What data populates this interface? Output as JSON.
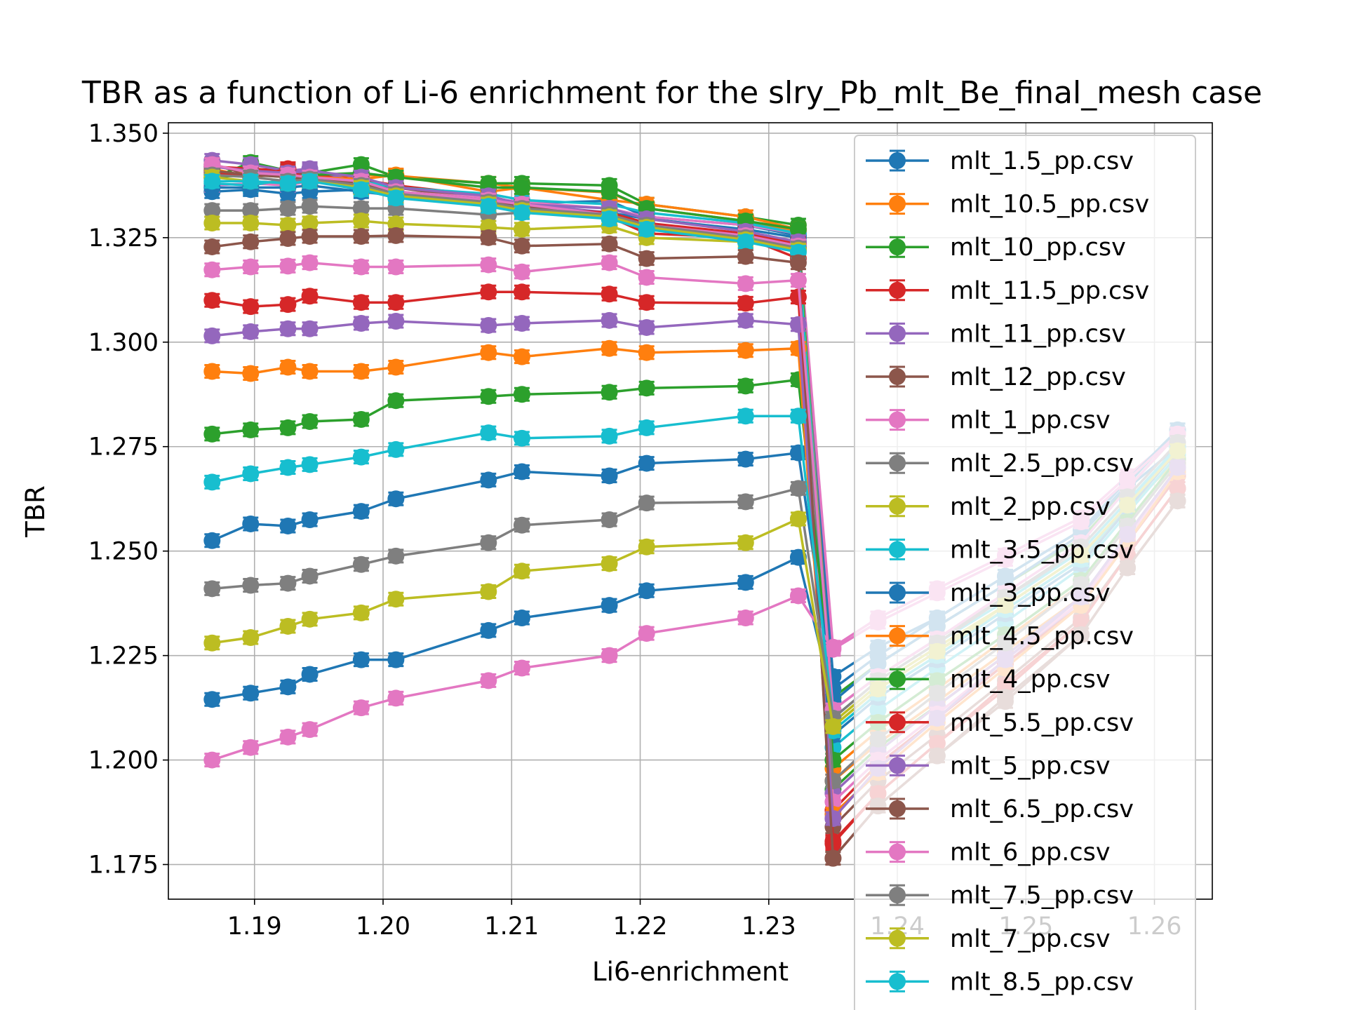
{
  "chart_data": {
    "type": "line",
    "title": "TBR as a function of Li-6 enrichment for the slry_Pb_mlt_Be_final_mesh case",
    "xlabel": "Li6-enrichment",
    "ylabel": "TBR",
    "xlim": [
      1.1833,
      1.2645
    ],
    "ylim": [
      1.1667,
      1.3525
    ],
    "xticks": [
      1.19,
      1.2,
      1.21,
      1.22,
      1.23,
      1.24,
      1.25,
      1.26
    ],
    "xtick_labels": [
      "1.19",
      "1.20",
      "1.21",
      "1.22",
      "1.23",
      "1.24",
      "1.25",
      "1.26"
    ],
    "yticks": [
      1.175,
      1.2,
      1.225,
      1.25,
      1.275,
      1.3,
      1.325,
      1.35
    ],
    "ytick_labels": [
      "1.175",
      "1.200",
      "1.225",
      "1.250",
      "1.275",
      "1.300",
      "1.325",
      "1.350"
    ],
    "grid": true,
    "legend_position": "upper-right",
    "x": [
      1.1867,
      1.1897,
      1.1926,
      1.1943,
      1.1983,
      1.201,
      1.2082,
      1.2108,
      1.2176,
      1.2205,
      1.2282,
      1.2323,
      1.235,
      1.2385,
      1.2431,
      1.2484,
      1.2543,
      1.2579,
      1.2618
    ],
    "series": [
      {
        "name": "mlt_1.5_pp.csv",
        "color": "#1f77b4",
        "values": [
          1.336,
          1.3365,
          1.3355,
          1.336,
          1.3365,
          1.3345,
          1.333,
          1.3332,
          1.3338,
          1.33,
          1.328,
          1.3255,
          1.22,
          1.227,
          1.234,
          1.244,
          1.255,
          1.265,
          1.275
        ]
      },
      {
        "name": "mlt_10.5_pp.csv",
        "color": "#ff7f0e",
        "values": [
          1.3415,
          1.3395,
          1.3405,
          1.3395,
          1.34,
          1.3398,
          1.338,
          1.337,
          1.3358,
          1.332,
          1.329,
          1.3265,
          1.195,
          1.204,
          1.214,
          1.226,
          1.239,
          1.253,
          1.268
        ]
      },
      {
        "name": "mlt_10_pp.csv",
        "color": "#2ca02c",
        "values": [
          1.3392,
          1.343,
          1.341,
          1.3405,
          1.3425,
          1.3395,
          1.338,
          1.338,
          1.3375,
          1.333,
          1.33,
          1.328,
          1.193,
          1.203,
          1.213,
          1.225,
          1.239,
          1.254,
          1.27
        ]
      },
      {
        "name": "mlt_11.5_pp.csv",
        "color": "#d62728",
        "values": [
          1.342,
          1.3415,
          1.341,
          1.34,
          1.339,
          1.3375,
          1.335,
          1.333,
          1.33,
          1.326,
          1.325,
          1.32,
          1.18,
          1.192,
          1.204,
          1.217,
          1.233,
          1.249,
          1.265
        ]
      },
      {
        "name": "mlt_11_pp.csv",
        "color": "#9467bd",
        "values": [
          1.3435,
          1.3425,
          1.341,
          1.3415,
          1.338,
          1.337,
          1.3345,
          1.333,
          1.331,
          1.328,
          1.325,
          1.3225,
          1.186,
          1.198,
          1.21,
          1.223,
          1.238,
          1.254,
          1.27
        ]
      },
      {
        "name": "mlt_12_pp.csv",
        "color": "#8c564b",
        "values": [
          1.3425,
          1.34,
          1.341,
          1.3395,
          1.338,
          1.337,
          1.334,
          1.332,
          1.3305,
          1.328,
          1.3255,
          1.323,
          1.1765,
          1.189,
          1.201,
          1.214,
          1.23,
          1.246,
          1.262
        ]
      },
      {
        "name": "mlt_1_pp.csv",
        "color": "#e377c2",
        "values": [
          1.3375,
          1.338,
          1.3375,
          1.3385,
          1.337,
          1.336,
          1.3345,
          1.3335,
          1.332,
          1.33,
          1.328,
          1.326,
          1.227,
          1.234,
          1.241,
          1.249,
          1.258,
          1.268,
          1.278
        ]
      },
      {
        "name": "mlt_2.5_pp.csv",
        "color": "#7f7f7f",
        "values": [
          1.3315,
          1.3315,
          1.332,
          1.3325,
          1.332,
          1.332,
          1.3305,
          1.331,
          1.33,
          1.328,
          1.326,
          1.324,
          1.212,
          1.22,
          1.229,
          1.239,
          1.25,
          1.262,
          1.274
        ]
      },
      {
        "name": "mlt_2_pp.csv",
        "color": "#bcbd22",
        "values": [
          1.3285,
          1.3285,
          1.328,
          1.3285,
          1.329,
          1.3283,
          1.3275,
          1.327,
          1.3278,
          1.325,
          1.324,
          1.322,
          1.208,
          1.217,
          1.226,
          1.236,
          1.248,
          1.26,
          1.272
        ]
      },
      {
        "name": "mlt_3.5_pp.csv",
        "color": "#17becf",
        "values": [
          1.338,
          1.3375,
          1.339,
          1.3395,
          1.3385,
          1.337,
          1.3355,
          1.334,
          1.333,
          1.331,
          1.3285,
          1.326,
          1.203,
          1.212,
          1.222,
          1.233,
          1.246,
          1.259,
          1.273
        ]
      },
      {
        "name": "mlt_3_pp.csv",
        "color": "#1f77b4",
        "values": [
          1.337,
          1.337,
          1.337,
          1.3375,
          1.336,
          1.335,
          1.333,
          1.332,
          1.331,
          1.3295,
          1.327,
          1.325,
          1.206,
          1.215,
          1.224,
          1.235,
          1.247,
          1.26,
          1.274
        ]
      },
      {
        "name": "mlt_4.5_pp.csv",
        "color": "#ff7f0e",
        "values": [
          1.34,
          1.3405,
          1.34,
          1.3395,
          1.339,
          1.34,
          1.336,
          1.337,
          1.334,
          1.333,
          1.33,
          1.327,
          1.198,
          1.207,
          1.217,
          1.229,
          1.242,
          1.256,
          1.271
        ]
      },
      {
        "name": "mlt_4_pp.csv",
        "color": "#2ca02c",
        "values": [
          1.3395,
          1.34,
          1.3395,
          1.34,
          1.3405,
          1.3395,
          1.337,
          1.337,
          1.336,
          1.332,
          1.329,
          1.327,
          1.2,
          1.209,
          1.219,
          1.23,
          1.243,
          1.257,
          1.272
        ]
      },
      {
        "name": "mlt_5.5_pp.csv",
        "color": "#d62728",
        "values": [
          1.3405,
          1.3395,
          1.3415,
          1.3385,
          1.3375,
          1.335,
          1.3335,
          1.332,
          1.331,
          1.3285,
          1.326,
          1.3235,
          1.188,
          1.199,
          1.21,
          1.223,
          1.237,
          1.252,
          1.268
        ]
      },
      {
        "name": "mlt_5_pp.csv",
        "color": "#9467bd",
        "values": [
          1.342,
          1.341,
          1.3405,
          1.341,
          1.3395,
          1.337,
          1.335,
          1.333,
          1.332,
          1.3295,
          1.3265,
          1.324,
          1.192,
          1.202,
          1.213,
          1.225,
          1.239,
          1.254,
          1.27
        ]
      },
      {
        "name": "mlt_6.5_pp.csv",
        "color": "#8c564b",
        "values": [
          1.341,
          1.34,
          1.3395,
          1.339,
          1.338,
          1.336,
          1.334,
          1.3325,
          1.3305,
          1.328,
          1.3255,
          1.323,
          1.184,
          1.195,
          1.206,
          1.219,
          1.234,
          1.249,
          1.265
        ]
      },
      {
        "name": "mlt_6_pp.csv",
        "color": "#e377c2",
        "values": [
          1.3425,
          1.3405,
          1.34,
          1.3395,
          1.3385,
          1.336,
          1.334,
          1.333,
          1.3305,
          1.328,
          1.3255,
          1.323,
          1.19,
          1.2,
          1.211,
          1.224,
          1.238,
          1.253,
          1.269
        ]
      },
      {
        "name": "mlt_7.5_pp.csv",
        "color": "#7f7f7f",
        "values": [
          1.34,
          1.3395,
          1.3385,
          1.339,
          1.3375,
          1.3355,
          1.3335,
          1.332,
          1.3305,
          1.328,
          1.325,
          1.3225,
          1.195,
          1.205,
          1.216,
          1.228,
          1.242,
          1.256,
          1.271
        ]
      },
      {
        "name": "mlt_7_pp.csv",
        "color": "#bcbd22",
        "values": [
          1.3395,
          1.3385,
          1.338,
          1.3385,
          1.337,
          1.335,
          1.333,
          1.3315,
          1.33,
          1.3275,
          1.3245,
          1.322,
          1.209,
          1.218,
          1.227,
          1.237,
          1.249,
          1.261,
          1.274
        ]
      },
      {
        "name": "mlt_8.5_pp.csv",
        "color": "#17becf",
        "values": [
          1.3385,
          1.3385,
          1.338,
          1.3385,
          1.3365,
          1.3345,
          1.3325,
          1.331,
          1.3295,
          1.327,
          1.324,
          1.3215,
          1.207,
          1.216,
          1.225,
          1.236,
          1.248,
          1.261,
          1.275
        ]
      },
      {
        "name": "",
        "color": "#2ca02c",
        "values": [
          1.278,
          1.279,
          1.2795,
          1.281,
          1.2815,
          1.286,
          1.287,
          1.2875,
          1.288,
          1.289,
          1.2895,
          1.291,
          1.215,
          1.223,
          1.232,
          1.242,
          1.253,
          1.265,
          1.278
        ]
      },
      {
        "name": "",
        "color": "#1f77b4",
        "values": [
          1.2525,
          1.2565,
          1.256,
          1.2575,
          1.2595,
          1.2625,
          1.267,
          1.269,
          1.268,
          1.271,
          1.272,
          1.2735,
          1.217,
          1.225,
          1.234,
          1.244,
          1.255,
          1.267,
          1.279
        ]
      },
      {
        "name": "",
        "color": "#1f77b4",
        "values": [
          1.2145,
          1.216,
          1.2175,
          1.2205,
          1.224,
          1.224,
          1.231,
          1.234,
          1.237,
          1.2405,
          1.2425,
          1.2485,
          1.214,
          1.223,
          1.232,
          1.242,
          1.254,
          1.266,
          1.279
        ]
      },
      {
        "name": "",
        "color": "#ff7f0e",
        "values": [
          1.293,
          1.2925,
          1.294,
          1.293,
          1.293,
          1.294,
          1.2975,
          1.2965,
          1.2985,
          1.2975,
          1.298,
          1.2985,
          1.187,
          1.197,
          1.209,
          1.222,
          1.237,
          1.252,
          1.269
        ]
      },
      {
        "name": "",
        "color": "#d62728",
        "values": [
          1.31,
          1.3085,
          1.309,
          1.311,
          1.3095,
          1.3095,
          1.312,
          1.312,
          1.3115,
          1.3095,
          1.3093,
          1.3108,
          1.1805,
          1.192,
          1.204,
          1.218,
          1.233,
          1.249,
          1.265
        ]
      },
      {
        "name": "",
        "color": "#9467bd",
        "values": [
          1.3015,
          1.3025,
          1.3032,
          1.3032,
          1.3045,
          1.305,
          1.304,
          1.3045,
          1.3052,
          1.3035,
          1.3052,
          1.3042,
          1.186,
          1.198,
          1.21,
          1.224,
          1.239,
          1.254,
          1.27
        ]
      },
      {
        "name": "",
        "color": "#8c564b",
        "values": [
          1.3228,
          1.324,
          1.3248,
          1.3253,
          1.3253,
          1.3255,
          1.325,
          1.323,
          1.3235,
          1.32,
          1.3205,
          1.319,
          1.1765,
          1.189,
          1.201,
          1.215,
          1.23,
          1.246,
          1.262
        ]
      },
      {
        "name": "",
        "color": "#e377c2",
        "values": [
          1.3173,
          1.318,
          1.3182,
          1.319,
          1.318,
          1.318,
          1.3185,
          1.3168,
          1.319,
          1.3155,
          1.314,
          1.3148,
          1.212,
          1.22,
          1.229,
          1.24,
          1.252,
          1.265,
          1.278
        ]
      },
      {
        "name": "",
        "color": "#e377c2",
        "values": [
          1.2,
          1.203,
          1.2055,
          1.2073,
          1.2125,
          1.2148,
          1.219,
          1.222,
          1.225,
          1.2303,
          1.234,
          1.2393,
          1.2265,
          1.233,
          1.24,
          1.248,
          1.257,
          1.267,
          1.278
        ]
      },
      {
        "name": "",
        "color": "#17becf",
        "values": [
          1.2665,
          1.2685,
          1.27,
          1.2707,
          1.2725,
          1.2743,
          1.2783,
          1.277,
          1.2775,
          1.2795,
          1.2823,
          1.2823,
          1.21,
          1.219,
          1.228,
          1.238,
          1.25,
          1.262,
          1.275
        ]
      },
      {
        "name": "",
        "color": "#7f7f7f",
        "values": [
          1.241,
          1.2418,
          1.2423,
          1.244,
          1.2468,
          1.2488,
          1.252,
          1.2562,
          1.2575,
          1.2615,
          1.2618,
          1.265,
          1.21,
          1.219,
          1.228,
          1.239,
          1.251,
          1.263,
          1.276
        ]
      },
      {
        "name": "",
        "color": "#bcbd22",
        "values": [
          1.228,
          1.2293,
          1.232,
          1.2337,
          1.2352,
          1.2385,
          1.2403,
          1.2452,
          1.247,
          1.251,
          1.252,
          1.2577,
          1.208,
          1.217,
          1.226,
          1.237,
          1.249,
          1.261,
          1.274
        ]
      }
    ]
  }
}
